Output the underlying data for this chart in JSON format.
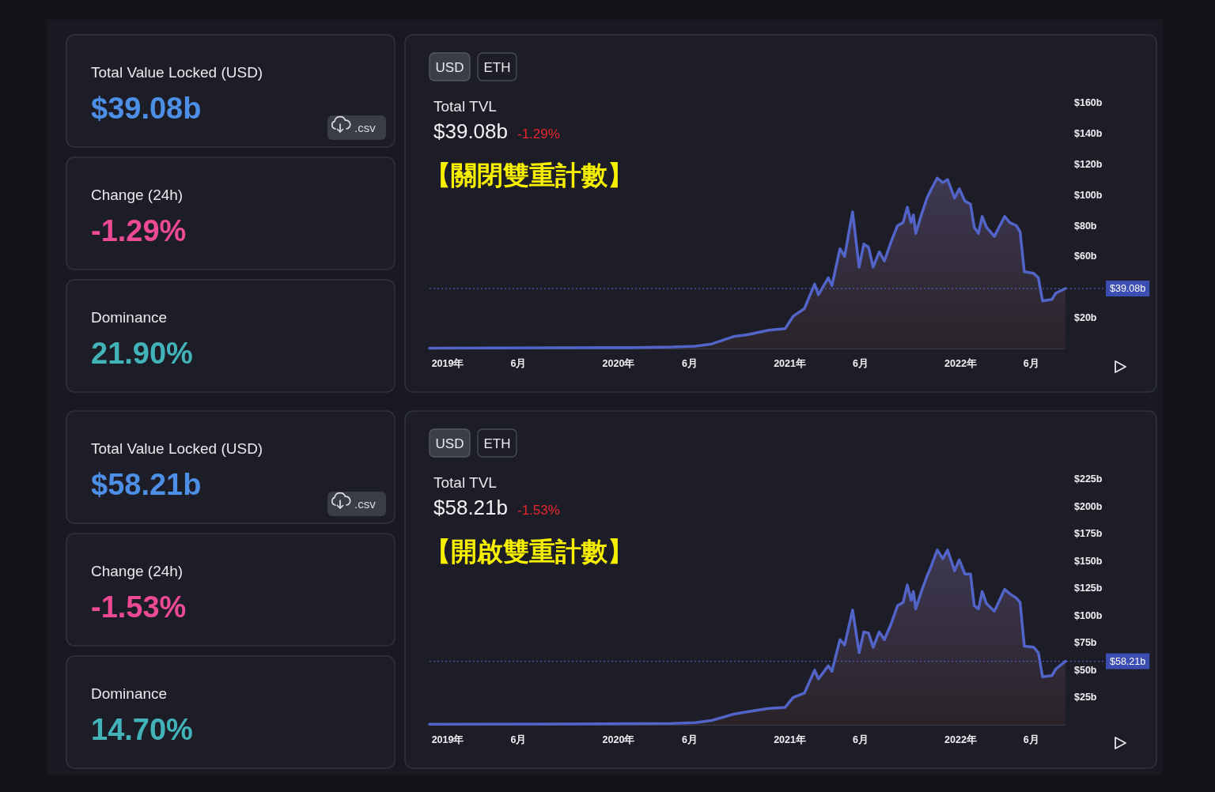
{
  "chart_data": [
    {
      "type": "other",
      "annotations": [
        "Total Value Locked (USD)",
        "$39.08b",
        ".csv",
        "Change (24h)",
        "-1.29%",
        "Dominance",
        "21.90%"
      ]
    },
    {
      "type": "area",
      "title": "Total TVL",
      "subtitle": "$39.08b",
      "annotations": [
        "USD",
        "ETH",
        "-1.29%",
        "【關閉雙重計數】"
      ],
      "x": [
        "2018-11-23",
        "2019-08-15",
        "2020-01-31",
        "2020-04-25",
        "2020-06-13",
        "2020-07-18",
        "2020-09-05",
        "2020-10-02",
        "2020-11-17",
        "2020-12-22",
        "2021-01-08",
        "2021-02-01",
        "2021-02-23",
        "2021-03-03",
        "2021-03-24",
        "2021-04-01",
        "2021-04-18",
        "2021-04-28",
        "2021-05-15",
        "2021-05-29",
        "2021-06-08",
        "2021-06-18",
        "2021-06-28",
        "2021-07-11",
        "2021-07-22",
        "2021-08-06",
        "2021-08-19",
        "2021-08-31",
        "2021-09-09",
        "2021-09-17",
        "2021-09-22",
        "2021-09-27",
        "2021-10-09",
        "2021-10-21",
        "2021-10-29",
        "2021-11-12",
        "2021-11-24",
        "2021-12-04",
        "2021-12-19",
        "2021-12-29",
        "2022-01-10",
        "2022-01-22",
        "2022-01-30",
        "2022-02-08",
        "2022-02-16",
        "2022-02-25",
        "2022-03-14",
        "2022-03-24",
        "2022-04-05",
        "2022-04-16",
        "2022-04-30",
        "2022-05-08",
        "2022-05-17",
        "2022-06-06",
        "2022-06-16",
        "2022-06-25",
        "2022-07-15",
        "2022-07-23",
        "2022-08-13"
      ],
      "series": [
        {
          "color": "#5264c8",
          "values": [
            0.3,
            0.5,
            0.7,
            1,
            1.5,
            3,
            8,
            9,
            12,
            13,
            21,
            26,
            42,
            35,
            46,
            41,
            65,
            60,
            89,
            53,
            68,
            66,
            53,
            63,
            57,
            70,
            80,
            82,
            92,
            82,
            87,
            75,
            87,
            98,
            103,
            111,
            108,
            110,
            98,
            104,
            96,
            94,
            79,
            75,
            86,
            79,
            73,
            79,
            86,
            82,
            80,
            76,
            50,
            49,
            46,
            31,
            32,
            36,
            39.08
          ]
        }
      ],
      "xlim": [
        "2018-11-23",
        "2022-08-13"
      ],
      "xticks": [
        {
          "value": "2019-01-01",
          "label": "2019年"
        },
        {
          "value": "2019-06-01",
          "label": "6月"
        },
        {
          "value": "2020-01-01",
          "label": "2020年"
        },
        {
          "value": "2020-06-01",
          "label": "6月"
        },
        {
          "value": "2021-01-01",
          "label": "2021年"
        },
        {
          "value": "2021-06-01",
          "label": "6月"
        },
        {
          "value": "2022-01-01",
          "label": "2022年"
        },
        {
          "value": "2022-06-01",
          "label": "6月"
        }
      ],
      "ylim": [
        0,
        160
      ],
      "yticks": [
        {
          "value": 20,
          "label": "$20b"
        },
        {
          "value": 60,
          "label": "$60b"
        },
        {
          "value": 80,
          "label": "$80b"
        },
        {
          "value": 100,
          "label": "$100b"
        },
        {
          "value": 120,
          "label": "$120b"
        },
        {
          "value": 140,
          "label": "$140b"
        },
        {
          "value": 160,
          "label": "$160b"
        }
      ],
      "ref_lines": [
        {
          "axis": "y",
          "value": 39.08,
          "label": "$39.08b",
          "color": "#4a5ab8",
          "line_style": "dotted"
        }
      ]
    },
    {
      "type": "other",
      "annotations": [
        "Total Value Locked (USD)",
        "$58.21b",
        ".csv",
        "Change (24h)",
        "-1.53%",
        "Dominance",
        "14.70%"
      ]
    },
    {
      "type": "area",
      "title": "Total TVL",
      "subtitle": "$58.21b",
      "annotations": [
        "USD",
        "ETH",
        "-1.53%",
        "【開啟雙重計數】"
      ],
      "x": [
        "2018-11-23",
        "2019-08-15",
        "2020-01-31",
        "2020-04-25",
        "2020-06-13",
        "2020-07-18",
        "2020-09-05",
        "2020-10-02",
        "2020-11-17",
        "2020-12-22",
        "2021-01-08",
        "2021-02-01",
        "2021-02-23",
        "2021-03-03",
        "2021-03-24",
        "2021-04-01",
        "2021-04-18",
        "2021-04-28",
        "2021-05-15",
        "2021-05-29",
        "2021-06-08",
        "2021-06-18",
        "2021-06-28",
        "2021-07-11",
        "2021-07-22",
        "2021-08-06",
        "2021-08-19",
        "2021-08-31",
        "2021-09-09",
        "2021-09-17",
        "2021-09-22",
        "2021-09-27",
        "2021-10-09",
        "2021-10-21",
        "2021-10-29",
        "2021-11-12",
        "2021-11-24",
        "2021-12-04",
        "2021-12-19",
        "2021-12-29",
        "2022-01-10",
        "2022-01-22",
        "2022-01-30",
        "2022-02-08",
        "2022-02-16",
        "2022-02-25",
        "2022-03-14",
        "2022-03-24",
        "2022-04-05",
        "2022-04-16",
        "2022-04-30",
        "2022-05-08",
        "2022-05-17",
        "2022-06-06",
        "2022-06-16",
        "2022-06-25",
        "2022-07-15",
        "2022-07-23",
        "2022-08-13"
      ],
      "series": [
        {
          "color": "#5264c8",
          "values": [
            0.5,
            0.7,
            1,
            1.2,
            2,
            4,
            10,
            12,
            15,
            16,
            25,
            29,
            50,
            42,
            54,
            49,
            78,
            73,
            105,
            66,
            85,
            84,
            71,
            85,
            78,
            93,
            109,
            112,
            128,
            114,
            122,
            106,
            122,
            136,
            144,
            160,
            152,
            160,
            141,
            151,
            138,
            138,
            109,
            106,
            122,
            111,
            104,
            113,
            124,
            120,
            116,
            112,
            72,
            71,
            66,
            44,
            45,
            51,
            58.21
          ]
        }
      ],
      "xlim": [
        "2018-11-23",
        "2022-08-13"
      ],
      "xticks": [
        {
          "value": "2019-01-01",
          "label": "2019年"
        },
        {
          "value": "2019-06-01",
          "label": "6月"
        },
        {
          "value": "2020-01-01",
          "label": "2020年"
        },
        {
          "value": "2020-06-01",
          "label": "6月"
        },
        {
          "value": "2021-01-01",
          "label": "2021年"
        },
        {
          "value": "2021-06-01",
          "label": "6月"
        },
        {
          "value": "2022-01-01",
          "label": "2022年"
        },
        {
          "value": "2022-06-01",
          "label": "6月"
        }
      ],
      "ylim": [
        0,
        225
      ],
      "yticks": [
        {
          "value": 25,
          "label": "$25b"
        },
        {
          "value": 50,
          "label": "$50b"
        },
        {
          "value": 75,
          "label": "$75b"
        },
        {
          "value": 100,
          "label": "$100b"
        },
        {
          "value": 125,
          "label": "$125b"
        },
        {
          "value": 150,
          "label": "$150b"
        },
        {
          "value": 175,
          "label": "$175b"
        },
        {
          "value": 200,
          "label": "$200b"
        },
        {
          "value": 225,
          "label": "$225b"
        }
      ],
      "ref_lines": [
        {
          "axis": "y",
          "value": 58.21,
          "label": "$58.21b",
          "color": "#4a5ab8",
          "line_style": "dotted"
        }
      ]
    }
  ]
}
